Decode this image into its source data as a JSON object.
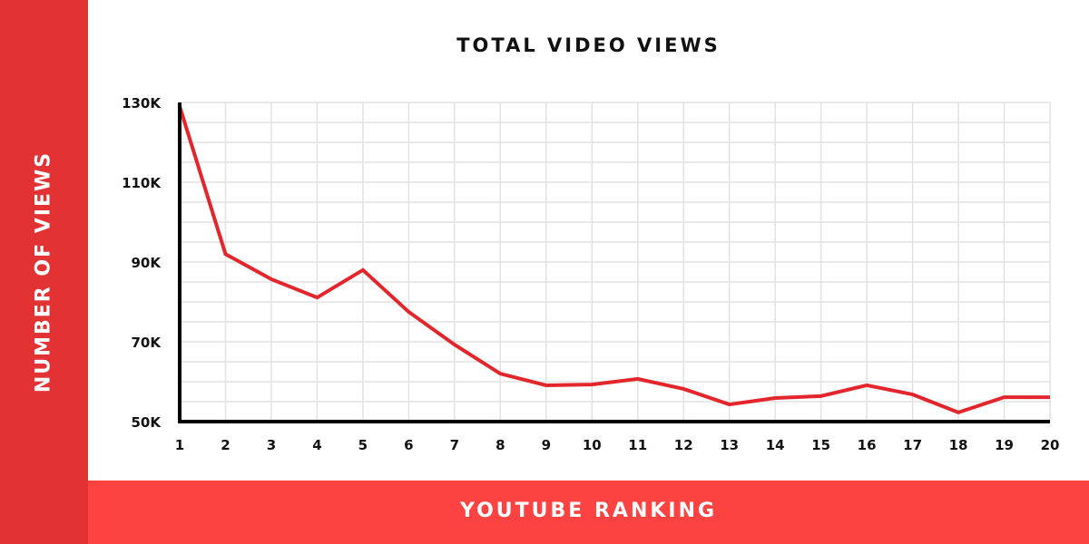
{
  "chart_data": {
    "type": "line",
    "title": "TOTAL VIDEO VIEWS",
    "xlabel": "YOUTUBE RANKING",
    "ylabel": "NUMBER OF VIEWS",
    "x": [
      1,
      2,
      3,
      4,
      5,
      6,
      7,
      8,
      9,
      10,
      11,
      12,
      13,
      14,
      15,
      16,
      17,
      18,
      19,
      20
    ],
    "values": [
      129,
      92,
      85.7,
      81.1,
      88,
      77.5,
      69.3,
      62,
      59.1,
      59.3,
      60.7,
      58.2,
      54.3,
      55.9,
      56.4,
      59.1,
      56.8,
      52.3,
      56.1,
      56.1
    ],
    "value_unit": "K",
    "ylim": [
      50,
      130
    ],
    "yticks": [
      50,
      70,
      90,
      110,
      130
    ],
    "ytick_labels": [
      "50K",
      "70K",
      "90K",
      "110K",
      "130K"
    ],
    "grid": true,
    "minor_grid_step": 5,
    "colors": {
      "line": "#e3262b",
      "side_band": "#e33233",
      "bottom_band": "#fd4242",
      "grid": "#e2e2e2"
    }
  }
}
